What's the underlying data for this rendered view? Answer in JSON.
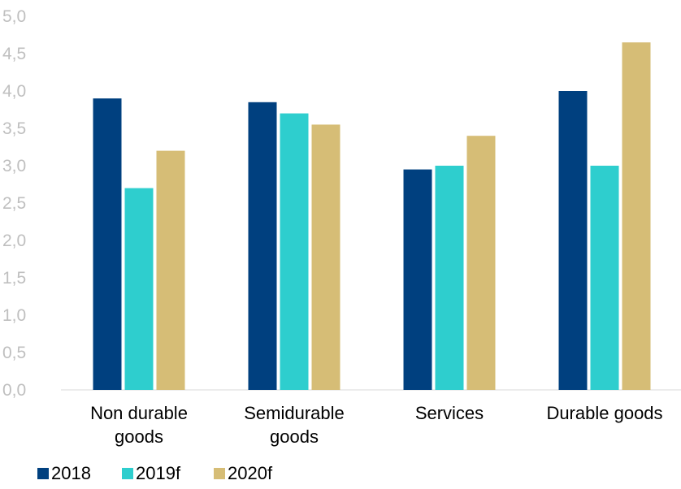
{
  "chart_data": {
    "type": "bar",
    "categories": [
      [
        "Non durable",
        "goods"
      ],
      [
        "Semidurable",
        "goods"
      ],
      [
        "Services"
      ],
      [
        "Durable goods"
      ]
    ],
    "series": [
      {
        "name": "2018",
        "color": "#00407f",
        "values": [
          3.9,
          3.85,
          2.95,
          4.0
        ]
      },
      {
        "name": "2019f",
        "color": "#2ecece",
        "values": [
          2.7,
          3.7,
          3.0,
          3.0
        ]
      },
      {
        "name": "2020f",
        "color": "#d6bd76",
        "values": [
          3.2,
          3.55,
          3.4,
          4.65
        ]
      }
    ],
    "ylim": [
      0,
      5
    ],
    "yticks": [
      "0,0",
      "0,5",
      "1,0",
      "1,5",
      "2,0",
      "2,5",
      "3,0",
      "3,5",
      "4,0",
      "4,5",
      "5,0"
    ],
    "grid": false,
    "legend_position": "bottom-left"
  }
}
